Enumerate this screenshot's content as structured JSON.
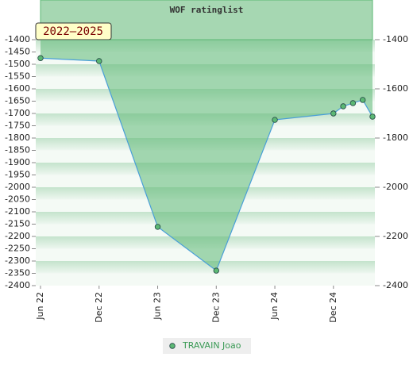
{
  "chart_data": {
    "type": "area",
    "title": "WOF ratinglist",
    "annotation": "2022–2025",
    "x": [
      "2022-06",
      "2022-12",
      "2023-06",
      "2023-12",
      "2024-06",
      "2024-12",
      "2025-01",
      "2025-02",
      "2025-03",
      "2025-04"
    ],
    "series": [
      {
        "name": "TRAVAIN Joao",
        "color": "#5cb874",
        "values": [
          -1475,
          -1487,
          -2161,
          -2339,
          -1726,
          -1700,
          -1671,
          -1658,
          -1645,
          -1713
        ]
      }
    ],
    "xlim": [
      "2022-06",
      "2025-04"
    ],
    "xticks": [
      {
        "value": "2022-06",
        "label": "Jun 22"
      },
      {
        "value": "2022-12",
        "label": "Dec 22"
      },
      {
        "value": "2023-06",
        "label": "Jun 23"
      },
      {
        "value": "2023-12",
        "label": "Dec 23"
      },
      {
        "value": "2024-06",
        "label": "Jun 24"
      },
      {
        "value": "2024-12",
        "label": "Dec 24"
      }
    ],
    "ylim": [
      -2400,
      -1400
    ],
    "yticks": [
      -1400,
      -1450,
      -1500,
      -1550,
      -1600,
      -1650,
      -1700,
      -1750,
      -1800,
      -1850,
      -1900,
      -1950,
      -2000,
      -2050,
      -2100,
      -2150,
      -2200,
      -2250,
      -2300,
      -2350,
      -2400
    ],
    "y2lim": [
      -2400,
      -1400
    ],
    "y2ticks": [
      -1400,
      -1600,
      -1800,
      -2000,
      -2200,
      -2400
    ],
    "legend": "bottom"
  }
}
